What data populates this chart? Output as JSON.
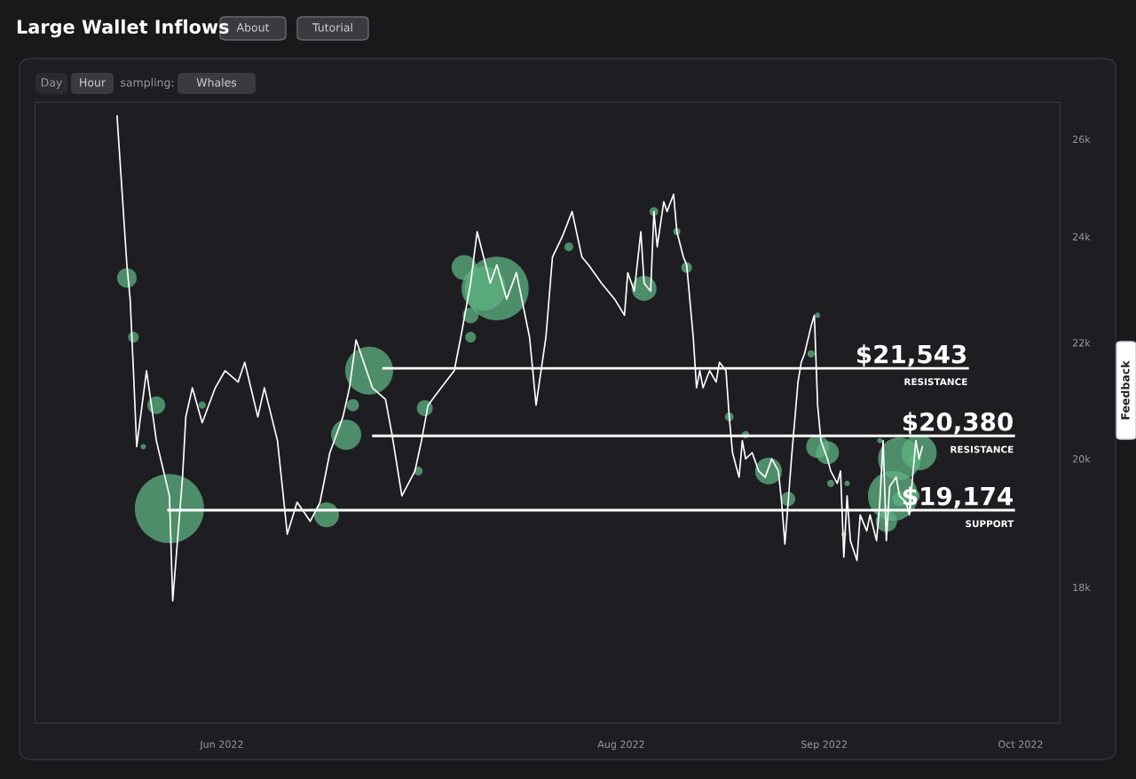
{
  "chart_data": {
    "type": "line",
    "title": "Large Wallet Inflows",
    "annotations": [
      "About",
      "Tutorial",
      "Day",
      "Hour",
      "sampling:",
      "Whales",
      "Feedback"
    ],
    "log": "y",
    "grid": false,
    "legend": false,
    "xlim": [
      "2022-05-03T12:00",
      "2022-10-07"
    ],
    "xticks": [
      {
        "value": "2022-06-01",
        "label": "Jun 2022"
      },
      {
        "value": "2022-08-01",
        "label": "Aug 2022"
      },
      {
        "value": "2022-09-01",
        "label": "Sep 2022"
      },
      {
        "value": "2022-10-01",
        "label": "Oct 2022"
      }
    ],
    "ylim": [
      16100,
      26800
    ],
    "yticks": [
      {
        "value": 18000,
        "label": "18k"
      },
      {
        "value": 20000,
        "label": "20k"
      },
      {
        "value": 22000,
        "label": "22k"
      },
      {
        "value": 24000,
        "label": "24k"
      },
      {
        "value": 26000,
        "label": "26k"
      }
    ],
    "series": [
      {
        "type": "bubble",
        "color": "#5fb382",
        "x": [
          "2022-05-17T12:00",
          "2022-05-18T12:00",
          "2022-05-22",
          "2022-05-24",
          "2022-05-29",
          "2022-05-20",
          "2022-06-20",
          "2022-06-21",
          "2022-06-23T12:00",
          "2022-06-17",
          "2022-07-01",
          "2022-07-02",
          "2022-07-08",
          "2022-07-09",
          "2022-07-13",
          "2022-07-11",
          "2022-07-09",
          "2022-07-24",
          "2022-08-04T12:00",
          "2022-08-06",
          "2022-08-09T12:00",
          "2022-08-11",
          "2022-08-17T12:00",
          "2022-08-20",
          "2022-08-23T12:00",
          "2022-08-26T12:00",
          "2022-08-30",
          "2022-08-31",
          "2022-09-01T12:00",
          "2022-08-31",
          "2022-09-02",
          "2022-09-04T12:00",
          "2022-09-09T12:00",
          "2022-09-12T12:00",
          "2022-09-11T12:00",
          "2022-09-14T12:00",
          "2022-09-15T12:00",
          "2022-09-14T12:00",
          "2022-09-10T12:00",
          "2022-09-04",
          "2022-09-12T12:00"
        ],
        "values": [
          23200,
          22100,
          20900,
          19200,
          20900,
          20200,
          20400,
          20900,
          21500,
          19100,
          19800,
          20850,
          23400,
          22500,
          23000,
          23000,
          22100,
          23800,
          23000,
          24500,
          24100,
          23400,
          20700,
          20400,
          19800,
          19350,
          21800,
          20200,
          20100,
          22500,
          19600,
          19600,
          20300,
          20000,
          19400,
          19400,
          20100,
          20000,
          19000,
          18800,
          19350
        ],
        "sizes": [
          0.08,
          0.024,
          0.066,
          1,
          0.011,
          0.006,
          0.19,
          0.032,
          0.48,
          0.13,
          0.016,
          0.053,
          0.13,
          0.053,
          0.85,
          0.41,
          0.024,
          0.016,
          0.13,
          0.016,
          0.011,
          0.024,
          0.016,
          0.011,
          0.15,
          0.042,
          0.011,
          0.11,
          0.11,
          0.006,
          0.011,
          0.006,
          0.006,
          0.38,
          0.52,
          0.042,
          0.26,
          0.016,
          0.095,
          0.006,
          0.042
        ]
      },
      {
        "color": "#ffffff",
        "x": [
          "2022-05-16",
          "2022-05-17T12:00",
          "2022-05-18",
          "2022-05-18T12:00",
          "2022-05-19",
          "2022-05-20T12:00",
          "2022-05-21T12:00",
          "2022-05-22",
          "2022-05-24",
          "2022-05-24T12:00",
          "2022-05-26",
          "2022-05-26T12:00",
          "2022-05-27T12:00",
          "2022-05-29",
          "2022-05-31",
          "2022-06-01T12:00",
          "2022-06-03T12:00",
          "2022-06-04T12:00",
          "2022-06-06T12:00",
          "2022-06-07T12:00",
          "2022-06-09T12:00",
          "2022-06-11",
          "2022-06-12T12:00",
          "2022-06-14T12:00",
          "2022-06-16",
          "2022-06-17T12:00",
          "2022-06-19T12:00",
          "2022-06-20T12:00",
          "2022-06-21T12:00",
          "2022-06-24",
          "2022-06-26",
          "2022-06-27",
          "2022-06-28T12:00",
          "2022-06-30T12:00",
          "2022-07-01T12:00",
          "2022-07-02T12:00",
          "2022-07-04T12:00",
          "2022-07-06T12:00",
          "2022-07-07T12:00",
          "2022-07-09",
          "2022-07-10",
          "2022-07-12",
          "2022-07-13",
          "2022-07-14T12:00",
          "2022-07-16",
          "2022-07-18",
          "2022-07-19",
          "2022-07-20T12:00",
          "2022-07-21T12:00",
          "2022-07-23",
          "2022-07-24T12:00",
          "2022-07-26",
          "2022-07-27",
          "2022-07-29",
          "2022-07-31",
          "2022-08-01T12:00",
          "2022-08-02",
          "2022-08-03",
          "2022-08-04",
          "2022-08-04T12:00",
          "2022-08-05T12:00",
          "2022-08-06",
          "2022-08-06T12:00",
          "2022-08-07T12:00",
          "2022-08-08",
          "2022-08-09",
          "2022-08-09T12:00",
          "2022-08-10T12:00",
          "2022-08-11",
          "2022-08-12",
          "2022-08-12T12:00",
          "2022-08-13",
          "2022-08-13T12:00",
          "2022-08-14T12:00",
          "2022-08-15T12:00",
          "2022-08-16",
          "2022-08-17",
          "2022-08-17T12:00",
          "2022-08-18",
          "2022-08-19",
          "2022-08-19T12:00",
          "2022-08-20",
          "2022-08-21",
          "2022-08-22",
          "2022-08-23",
          "2022-08-24",
          "2022-08-25",
          "2022-08-25T12:00",
          "2022-08-26",
          "2022-08-26T12:00",
          "2022-08-27",
          "2022-08-28",
          "2022-08-28T12:00",
          "2022-08-29",
          "2022-08-30",
          "2022-08-30T12:00",
          "2022-08-31",
          "2022-08-31T12:00",
          "2022-09-01T12:00",
          "2022-09-02",
          "2022-09-03",
          "2022-09-03T12:00",
          "2022-09-04",
          "2022-09-04T12:00",
          "2022-09-05",
          "2022-09-06",
          "2022-09-06T12:00",
          "2022-09-07T12:00",
          "2022-09-08",
          "2022-09-09",
          "2022-09-09T12:00",
          "2022-09-10",
          "2022-09-10T12:00",
          "2022-09-11",
          "2022-09-12",
          "2022-09-12T12:00",
          "2022-09-13T12:00",
          "2022-09-14",
          "2022-09-14T12:00",
          "2022-09-15",
          "2022-09-15T12:00",
          "2022-09-16"
        ],
        "values": [
          26500,
          23450,
          22800,
          21500,
          20200,
          21500,
          20700,
          20300,
          19400,
          17800,
          19700,
          20700,
          21200,
          20600,
          21200,
          21500,
          21300,
          21650,
          20700,
          21200,
          20300,
          18800,
          19300,
          19000,
          19300,
          20100,
          20700,
          21200,
          22050,
          21200,
          21000,
          20400,
          19400,
          19800,
          20300,
          20900,
          21200,
          21500,
          22100,
          23100,
          24100,
          23100,
          23450,
          22800,
          23300,
          22100,
          20900,
          22100,
          23600,
          24000,
          24500,
          23600,
          23450,
          23100,
          22800,
          22500,
          23300,
          22950,
          24100,
          23100,
          22950,
          24500,
          23800,
          24700,
          24500,
          24850,
          24100,
          23600,
          23450,
          22100,
          21200,
          21500,
          21200,
          21500,
          21300,
          21650,
          21500,
          20700,
          20100,
          19700,
          20300,
          20000,
          20100,
          19800,
          19700,
          20000,
          19800,
          19300,
          18650,
          19300,
          20000,
          21300,
          21650,
          21800,
          22300,
          22500,
          20900,
          20300,
          20000,
          19800,
          19600,
          19800,
          18450,
          19400,
          18700,
          18400,
          19100,
          18850,
          19100,
          18700,
          19300,
          20300,
          18700,
          19550,
          19700,
          19400,
          19300,
          19100,
          19700,
          20300,
          20000,
          20200
        ]
      }
    ],
    "ref_lines": [
      {
        "axis": "y",
        "value": 21543,
        "label": "$21,543\nRESISTANCE",
        "color": "#ffffff"
      },
      {
        "axis": "y",
        "value": 20380,
        "label": "$20,380\nRESISTANCE",
        "color": "#ffffff"
      },
      {
        "axis": "y",
        "value": 19174,
        "label": "$19,174\nSUPPORT",
        "color": "#ffffff"
      }
    ]
  }
}
